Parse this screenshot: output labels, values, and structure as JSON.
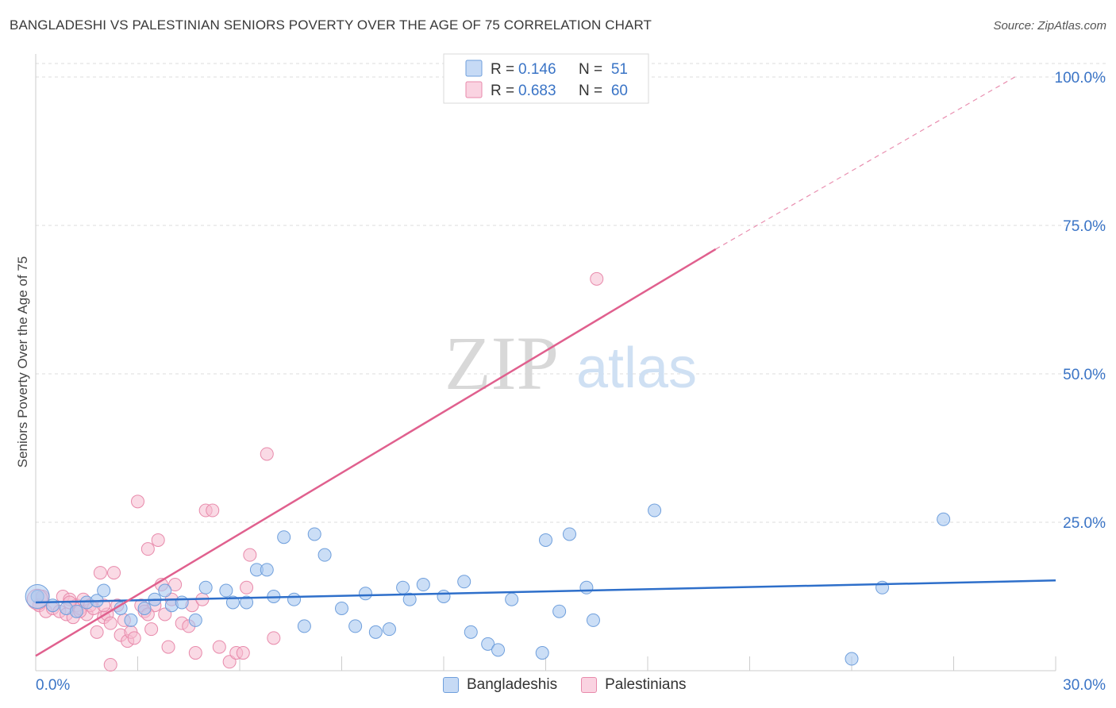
{
  "title": "BANGLADESHI VS PALESTINIAN SENIORS POVERTY OVER THE AGE OF 75 CORRELATION CHART",
  "source": "Source: ZipAtlas.com",
  "watermark": {
    "zip": "ZIP",
    "atlas": "atlas"
  },
  "colors": {
    "blue_fill": "#a9c8f0",
    "blue_stroke": "#6f9fdc",
    "blue_line": "#2e6fca",
    "pink_fill": "#f6bcd0",
    "pink_stroke": "#e88aab",
    "pink_line": "#e0608e",
    "value_text": "#3a74c6",
    "grid": "#dddddd"
  },
  "chart_data": {
    "type": "scatter",
    "xlabel": "",
    "ylabel": "Seniors Poverty Over the Age of 75",
    "xlim": [
      0,
      30
    ],
    "ylim": [
      0,
      100
    ],
    "x_ticks": [
      0,
      3,
      6,
      9,
      12,
      15,
      18,
      21,
      24,
      27,
      30
    ],
    "x_tick_labels": {
      "min": "0.0%",
      "max": "30.0%"
    },
    "y_ticks": [
      25,
      50,
      75,
      100
    ],
    "y_tick_labels": [
      "25.0%",
      "50.0%",
      "75.0%",
      "100.0%"
    ],
    "grid": true,
    "legend_top": [
      {
        "r_label": "R =",
        "r_value": "0.146",
        "n_label": "N =",
        "n_value": "51"
      },
      {
        "r_label": "R =",
        "r_value": "0.683",
        "n_label": "N =",
        "n_value": "60"
      }
    ],
    "series": [
      {
        "name": "Bangladeshis",
        "trend": {
          "x": [
            0,
            30
          ],
          "y": [
            11.5,
            15.2
          ]
        },
        "points": [
          [
            0.05,
            12.5
          ],
          [
            0.5,
            11.0
          ],
          [
            0.9,
            10.5
          ],
          [
            1.2,
            10.0
          ],
          [
            1.5,
            11.5
          ],
          [
            1.8,
            11.8
          ],
          [
            2.0,
            13.5
          ],
          [
            2.5,
            10.5
          ],
          [
            2.8,
            8.5
          ],
          [
            3.2,
            10.5
          ],
          [
            3.5,
            12.0
          ],
          [
            3.8,
            13.5
          ],
          [
            4.0,
            11.0
          ],
          [
            4.3,
            11.5
          ],
          [
            4.7,
            8.5
          ],
          [
            5.0,
            14.0
          ],
          [
            5.6,
            13.5
          ],
          [
            5.8,
            11.5
          ],
          [
            6.2,
            11.5
          ],
          [
            6.5,
            17.0
          ],
          [
            6.8,
            17.0
          ],
          [
            7.0,
            12.5
          ],
          [
            7.3,
            22.5
          ],
          [
            7.6,
            12.0
          ],
          [
            7.9,
            7.5
          ],
          [
            8.2,
            23.0
          ],
          [
            8.5,
            19.5
          ],
          [
            9.0,
            10.5
          ],
          [
            9.4,
            7.5
          ],
          [
            9.7,
            13.0
          ],
          [
            10.0,
            6.5
          ],
          [
            10.4,
            7.0
          ],
          [
            10.8,
            14.0
          ],
          [
            11.0,
            12.0
          ],
          [
            11.4,
            14.5
          ],
          [
            12.0,
            12.5
          ],
          [
            12.6,
            15.0
          ],
          [
            12.8,
            6.5
          ],
          [
            13.3,
            4.5
          ],
          [
            13.6,
            3.5
          ],
          [
            14.0,
            12.0
          ],
          [
            14.9,
            3.0
          ],
          [
            15.0,
            22.0
          ],
          [
            15.4,
            10.0
          ],
          [
            15.7,
            23.0
          ],
          [
            16.2,
            14.0
          ],
          [
            16.4,
            8.5
          ],
          [
            18.2,
            27.0
          ],
          [
            24.0,
            2.0
          ],
          [
            24.9,
            14.0
          ],
          [
            26.7,
            25.5
          ]
        ]
      },
      {
        "name": "Palestinians",
        "trend": {
          "x": [
            0,
            20
          ],
          "y": [
            2.5,
            71.0
          ]
        },
        "trend_dashed": {
          "x": [
            20,
            28.8
          ],
          "y": [
            71.0,
            100.0
          ]
        },
        "points": [
          [
            0.1,
            11.0
          ],
          [
            0.3,
            10.0
          ],
          [
            0.5,
            10.5
          ],
          [
            0.7,
            10.0
          ],
          [
            0.8,
            12.5
          ],
          [
            0.9,
            9.5
          ],
          [
            1.0,
            12.0
          ],
          [
            1.1,
            9.0
          ],
          [
            1.2,
            11.0
          ],
          [
            1.3,
            10.5
          ],
          [
            1.4,
            12.0
          ],
          [
            1.5,
            9.5
          ],
          [
            1.6,
            11.0
          ],
          [
            1.7,
            10.5
          ],
          [
            1.8,
            6.5
          ],
          [
            1.9,
            16.5
          ],
          [
            2.0,
            9.0
          ],
          [
            2.1,
            9.5
          ],
          [
            2.2,
            8.0
          ],
          [
            2.3,
            16.5
          ],
          [
            2.4,
            11.0
          ],
          [
            2.5,
            6.0
          ],
          [
            2.6,
            8.5
          ],
          [
            2.7,
            5.0
          ],
          [
            2.8,
            6.5
          ],
          [
            2.9,
            5.5
          ],
          [
            3.0,
            28.5
          ],
          [
            3.1,
            11.0
          ],
          [
            3.2,
            10.0
          ],
          [
            3.3,
            20.5
          ],
          [
            3.4,
            7.0
          ],
          [
            3.5,
            11.0
          ],
          [
            3.6,
            22.0
          ],
          [
            3.7,
            14.5
          ],
          [
            3.8,
            9.5
          ],
          [
            3.9,
            4.0
          ],
          [
            4.0,
            12.0
          ],
          [
            4.1,
            14.5
          ],
          [
            4.3,
            8.0
          ],
          [
            4.5,
            7.5
          ],
          [
            4.6,
            11.0
          ],
          [
            4.7,
            3.0
          ],
          [
            4.9,
            12.0
          ],
          [
            5.0,
            27.0
          ],
          [
            5.2,
            27.0
          ],
          [
            5.4,
            4.0
          ],
          [
            5.7,
            1.5
          ],
          [
            5.9,
            3.0
          ],
          [
            6.1,
            3.0
          ],
          [
            6.2,
            14.0
          ],
          [
            6.3,
            19.5
          ],
          [
            6.8,
            36.5
          ],
          [
            7.0,
            5.5
          ],
          [
            2.2,
            1.0
          ],
          [
            0.2,
            12.5
          ],
          [
            1.0,
            11.5
          ],
          [
            1.3,
            10.0
          ],
          [
            2.0,
            11.0
          ],
          [
            3.3,
            9.5
          ],
          [
            16.5,
            66.0
          ]
        ]
      }
    ]
  }
}
